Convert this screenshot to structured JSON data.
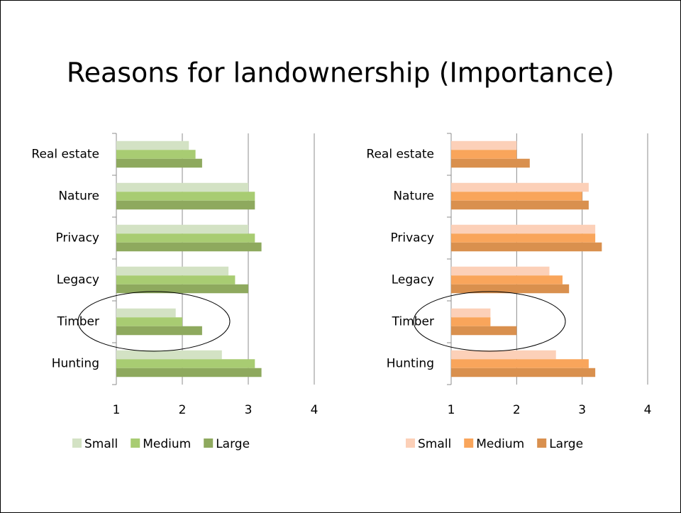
{
  "title": "Reasons for landownership (Importance)",
  "chart_data": [
    {
      "type": "bar",
      "orientation": "horizontal",
      "categories": [
        "Real estate",
        "Nature",
        "Privacy",
        "Legacy",
        "Timber",
        "Hunting"
      ],
      "series": [
        {
          "name": "Small",
          "color": "#d3e2c4",
          "values": [
            2.1,
            3.0,
            3.0,
            2.7,
            1.9,
            2.6
          ]
        },
        {
          "name": "Medium",
          "color": "#a8cc72",
          "values": [
            2.2,
            3.1,
            3.1,
            2.8,
            2.0,
            3.1
          ]
        },
        {
          "name": "Large",
          "color": "#8ea95e",
          "values": [
            2.3,
            3.1,
            3.2,
            3.0,
            2.3,
            3.2
          ]
        }
      ],
      "xlim": [
        1,
        4
      ],
      "xticks": [
        1,
        2,
        3,
        4
      ],
      "grid": true,
      "legend": "bottom"
    },
    {
      "type": "bar",
      "orientation": "horizontal",
      "categories": [
        "Real estate",
        "Nature",
        "Privacy",
        "Legacy",
        "Timber",
        "Hunting"
      ],
      "series": [
        {
          "name": "Small",
          "color": "#fcd0b8",
          "values": [
            2.0,
            3.1,
            3.2,
            2.5,
            1.6,
            2.6
          ]
        },
        {
          "name": "Medium",
          "color": "#f9a55b",
          "values": [
            2.0,
            3.0,
            3.2,
            2.7,
            1.6,
            3.1
          ]
        },
        {
          "name": "Large",
          "color": "#d9904e",
          "values": [
            2.2,
            3.1,
            3.3,
            2.8,
            2.0,
            3.2
          ]
        }
      ],
      "xlim": [
        1,
        4
      ],
      "xticks": [
        1,
        2,
        3,
        4
      ],
      "grid": true,
      "legend": "bottom"
    }
  ]
}
